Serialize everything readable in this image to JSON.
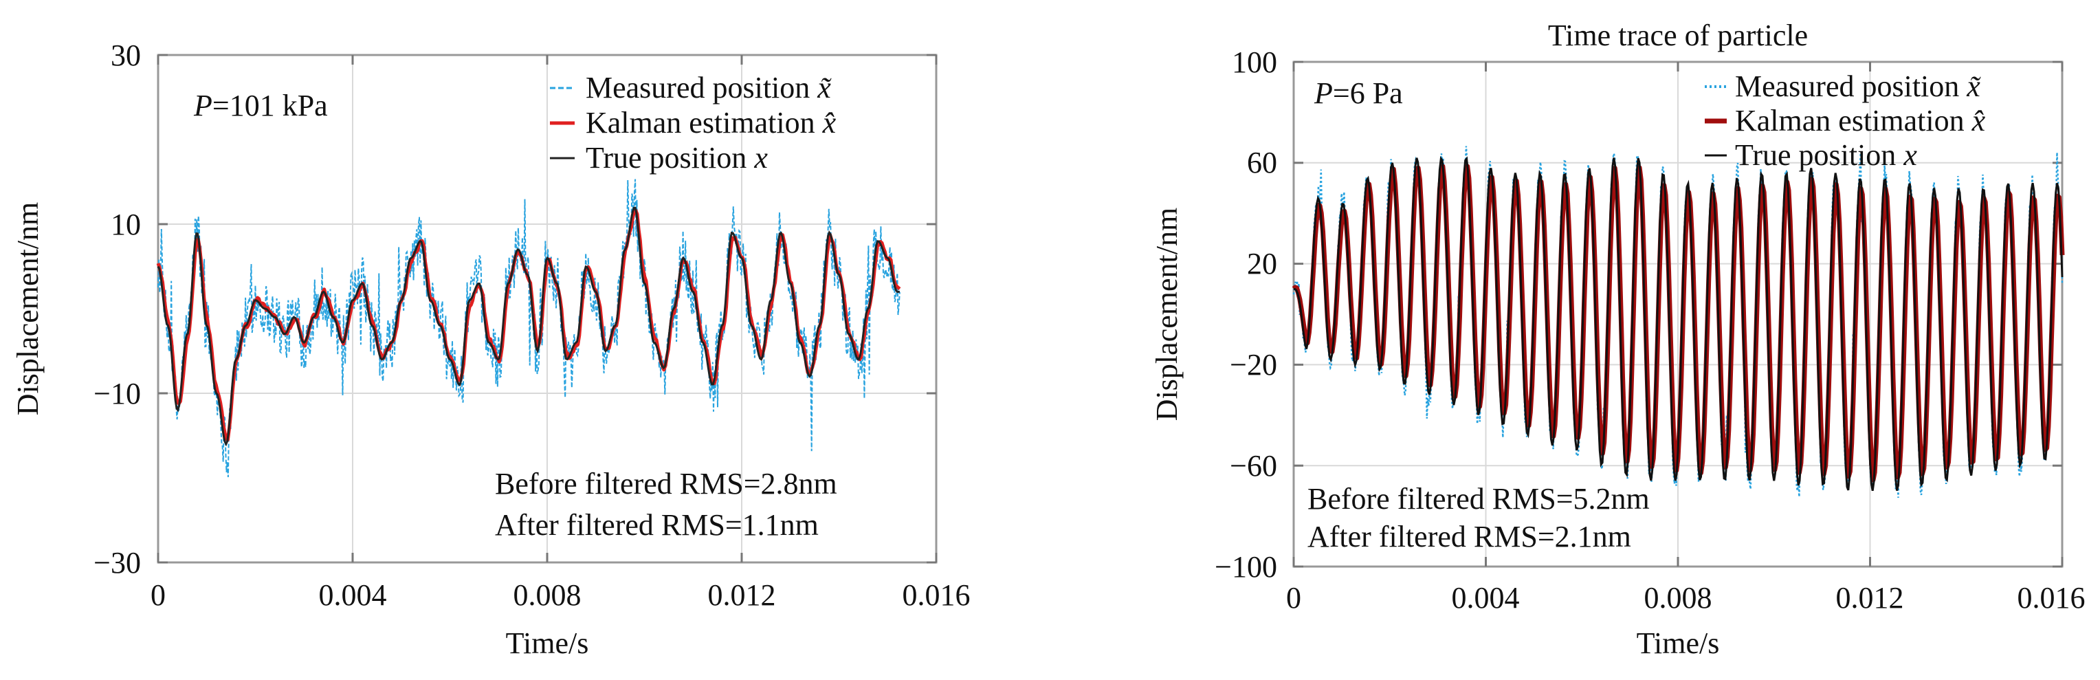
{
  "chart_data": [
    {
      "type": "line",
      "title": "",
      "xlabel": "Time/s",
      "ylabel": "Displacement/nm",
      "xlim": [
        0,
        0.016
      ],
      "ylim": [
        -30,
        30
      ],
      "xticks": [
        0,
        0.004,
        0.008,
        0.012,
        0.016
      ],
      "yticks": [
        -30,
        -10,
        10,
        30
      ],
      "xtick_labels": [
        "0",
        "0.004",
        "0.008",
        "0.012",
        "0.016"
      ],
      "ytick_labels": [
        "−30",
        "−10",
        "10",
        "30"
      ],
      "grid": true,
      "annotation_pressure": {
        "italic": "P",
        "rest": "=101 kPa"
      },
      "annotations": [
        "Before filtered RMS=2.8nm",
        "After filtered RMS=1.1nm"
      ],
      "legend_position": "top-right",
      "series": [
        {
          "name": "Measured position",
          "symbol": "x̃",
          "color": "#29a3df",
          "style": "dashed",
          "noise": 3.4
        },
        {
          "name": "Kalman estimation",
          "symbol": "x̂",
          "color": "#e02020",
          "style": "solid",
          "noise": 0.7
        },
        {
          "name": "True position",
          "symbol": "x",
          "color": "#222222",
          "style": "solid",
          "noise": 0
        }
      ],
      "t_end": 0.01525,
      "true_position": {
        "t": [
          0,
          0.0002,
          0.0004,
          0.0006,
          0.0008,
          0.001,
          0.0012,
          0.0014,
          0.0016,
          0.0018,
          0.002,
          0.0022,
          0.0024,
          0.0026,
          0.0028,
          0.003,
          0.0032,
          0.0034,
          0.0036,
          0.0038,
          0.004,
          0.0042,
          0.0044,
          0.0046,
          0.0048,
          0.005,
          0.0052,
          0.0054,
          0.0056,
          0.0058,
          0.006,
          0.0062,
          0.0064,
          0.0066,
          0.0068,
          0.007,
          0.0072,
          0.0074,
          0.0076,
          0.0078,
          0.008,
          0.0082,
          0.0084,
          0.0086,
          0.0088,
          0.009,
          0.0092,
          0.0094,
          0.0096,
          0.0098,
          0.01,
          0.0102,
          0.0104,
          0.0106,
          0.0108,
          0.011,
          0.0112,
          0.0114,
          0.0116,
          0.0118,
          0.012,
          0.0122,
          0.0124,
          0.0126,
          0.0128,
          0.013,
          0.0132,
          0.0134,
          0.0136,
          0.0138,
          0.014,
          0.0142,
          0.0144,
          0.0146,
          0.0148,
          0.015,
          0.0152
        ],
        "values": [
          5,
          -2,
          -12,
          -3,
          9,
          -2,
          -10,
          -16,
          -6,
          -2,
          1,
          0,
          -1,
          -3,
          -1,
          -4,
          -1,
          2,
          -1,
          -4,
          1,
          3,
          -2,
          -6,
          -4,
          1,
          6,
          8,
          1,
          -2,
          -6,
          -9,
          1,
          3,
          -4,
          -6,
          3,
          7,
          4,
          -5,
          6,
          3,
          -6,
          -4,
          5,
          2,
          -5,
          -2,
          7,
          12,
          3,
          -4,
          -7,
          0,
          6,
          2,
          -4,
          -9,
          -2,
          9,
          6,
          -2,
          -6,
          1,
          9,
          3,
          -4,
          -8,
          -2,
          9,
          4,
          -3,
          -6,
          0,
          8,
          6,
          2
        ]
      }
    },
    {
      "type": "line",
      "title": "Time trace of particle",
      "xlabel": "Time/s",
      "ylabel": "Displacement/nm",
      "xlim": [
        0,
        0.016
      ],
      "ylim": [
        -100,
        100
      ],
      "xticks": [
        0,
        0.004,
        0.008,
        0.012,
        0.016
      ],
      "yticks": [
        -100,
        -60,
        -20,
        20,
        60,
        100
      ],
      "xtick_labels": [
        "0",
        "0.004",
        "0.008",
        "0.012",
        "0.016"
      ],
      "ytick_labels": [
        "−100",
        "−60",
        "−20",
        "20",
        "60",
        "100"
      ],
      "grid": true,
      "annotation_pressure": {
        "italic": "P",
        "rest": "=6 Pa"
      },
      "annotations": [
        "Before filtered RMS=5.2nm",
        "After filtered RMS=2.1nm"
      ],
      "legend_position": "top-right",
      "series": [
        {
          "name": "Measured position",
          "symbol": "x̃",
          "color": "#29a3df",
          "style": "dotted",
          "noise": 6
        },
        {
          "name": "Kalman estimation",
          "symbol": "x̂",
          "color": "#a00d0d",
          "style": "solid",
          "noise": 1.5
        },
        {
          "name": "True position",
          "symbol": "x",
          "color": "#111111",
          "style": "solid",
          "noise": 0
        }
      ],
      "t_end": 0.016,
      "true_position": {
        "frequency_hz": 1950,
        "start_offset": 10,
        "peaks": [
          10,
          46,
          44,
          54,
          60,
          62,
          62,
          62,
          58,
          56,
          56,
          56,
          58,
          62,
          62,
          56,
          52,
          52,
          54,
          56,
          56,
          58,
          56,
          54,
          54,
          52,
          50,
          50,
          50,
          52,
          52,
          52
        ],
        "troughs": [
          -14,
          -18,
          -20,
          -22,
          -28,
          -32,
          -36,
          -40,
          -44,
          -48,
          -52,
          -54,
          -60,
          -64,
          -66,
          -66,
          -66,
          -66,
          -66,
          -66,
          -68,
          -68,
          -70,
          -70,
          -70,
          -68,
          -66,
          -64,
          -62,
          -60,
          -58,
          -56
        ]
      }
    }
  ]
}
